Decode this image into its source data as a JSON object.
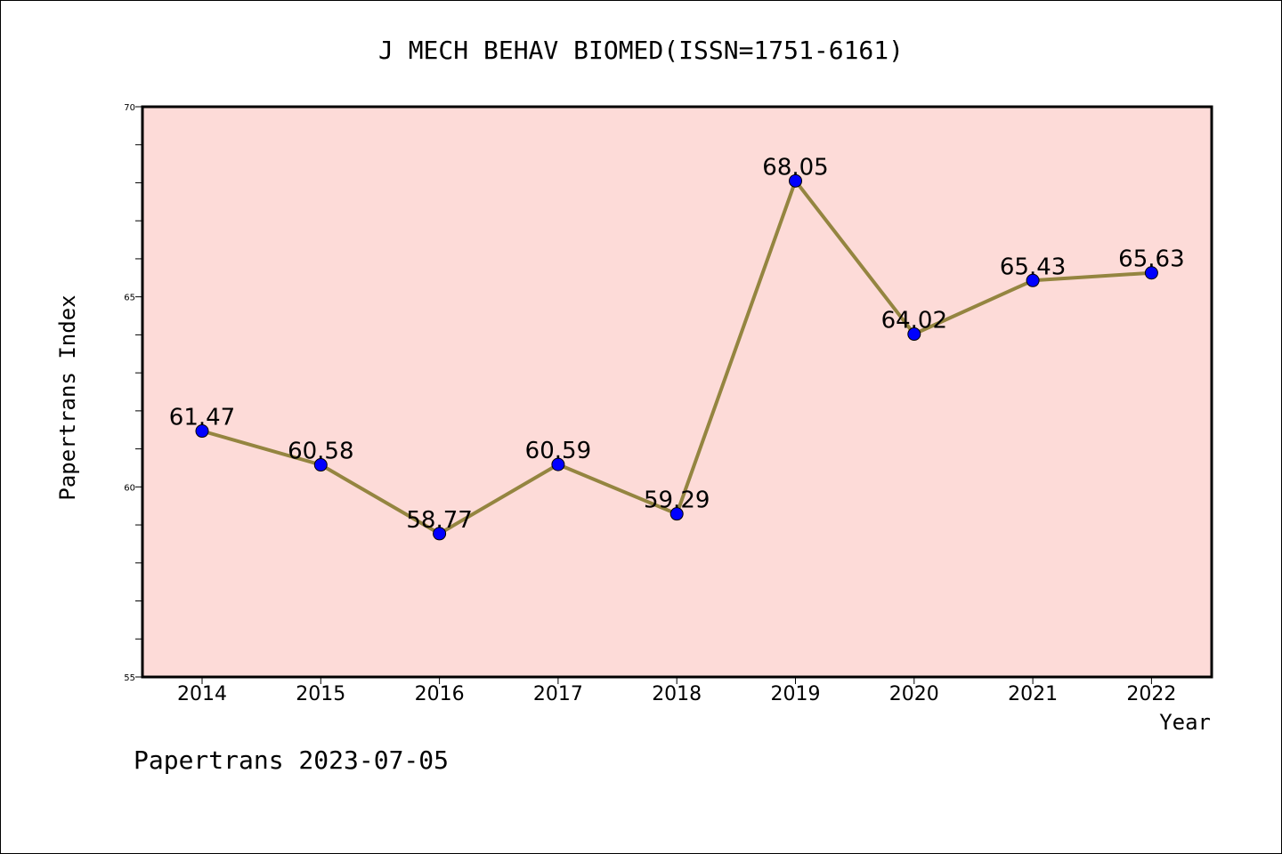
{
  "chart_data": {
    "type": "line",
    "title": "J MECH BEHAV BIOMED(ISSN=1751-6161)",
    "xlabel": "Year",
    "ylabel": "Papertrans Index",
    "categories": [
      "2014",
      "2015",
      "2016",
      "2017",
      "2018",
      "2019",
      "2020",
      "2021",
      "2022"
    ],
    "values": [
      61.47,
      60.58,
      58.77,
      60.59,
      59.29,
      68.05,
      64.02,
      65.43,
      65.63
    ],
    "data_labels": [
      "61.47",
      "60.58",
      "58.77",
      "60.59",
      "59.29",
      "68.05",
      "64.02",
      "65.43",
      "65.63"
    ],
    "ylim": [
      55,
      70
    ],
    "yticks": [
      55,
      60,
      65,
      70
    ],
    "ytick_labels": [
      "55",
      "60",
      "65",
      "70"
    ],
    "grid": false,
    "legend": "none",
    "colors": {
      "plot_background": "#fddbd8",
      "line": "#948540",
      "marker": "#0000ff",
      "axis": "#000000"
    }
  },
  "footer": {
    "text": "Papertrans 2023-07-05"
  }
}
